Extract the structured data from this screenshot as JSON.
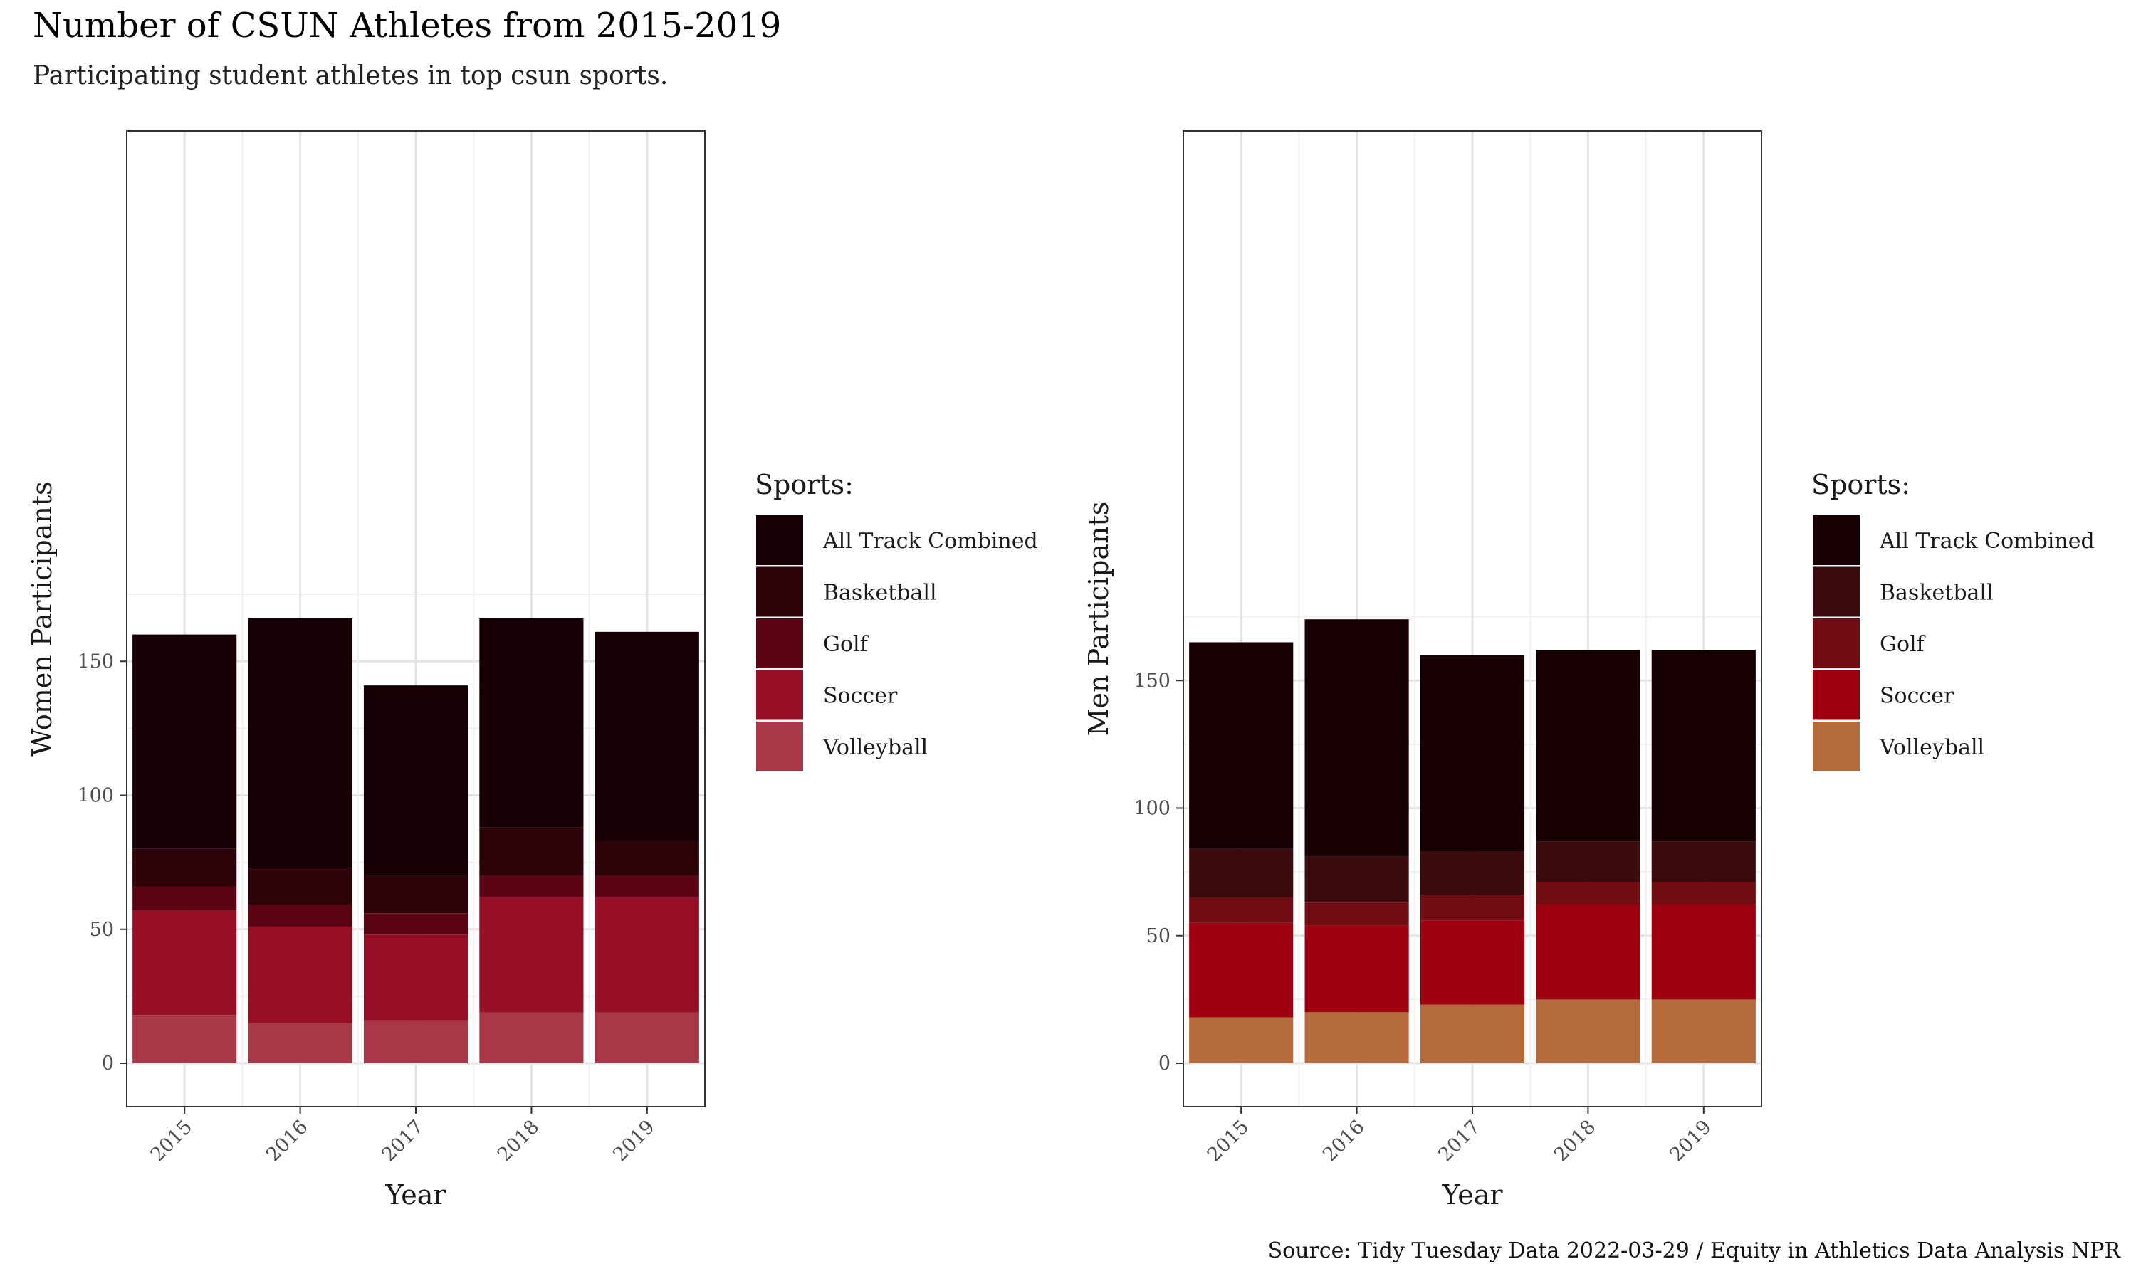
{
  "title": "Number of CSUN Athletes from 2015-2019",
  "subtitle": "Participating student athletes in top csun sports.",
  "caption": "Source: Tidy Tuesday Data 2022-03-29 / Equity in Athletics Data Analysis NPR",
  "chart_data": [
    {
      "type": "bar",
      "stacked": true,
      "categories": [
        "2015",
        "2016",
        "2017",
        "2018",
        "2019"
      ],
      "xlabel": "Year",
      "ylabel": "Women Participants",
      "ylim": [
        0,
        175
      ],
      "yticks": [
        0,
        50,
        100,
        150
      ],
      "grid": true,
      "legend": {
        "title": "Sports:",
        "placement": "right"
      },
      "series": [
        {
          "name": "Volleyball",
          "color": "#a83848",
          "values": [
            18,
            15,
            16,
            19,
            19
          ]
        },
        {
          "name": "Soccer",
          "color": "#960f26",
          "values": [
            39,
            36,
            32,
            43,
            43
          ]
        },
        {
          "name": "Golf",
          "color": "#5a0414",
          "values": [
            9,
            8,
            8,
            8,
            8
          ]
        },
        {
          "name": "Basketball",
          "color": "#2e0209",
          "values": [
            14,
            14,
            14,
            18,
            13
          ]
        },
        {
          "name": "All Track Combined",
          "color": "#160006",
          "values": [
            80,
            93,
            71,
            78,
            78
          ]
        }
      ]
    },
    {
      "type": "bar",
      "stacked": true,
      "categories": [
        "2015",
        "2016",
        "2017",
        "2018",
        "2019"
      ],
      "xlabel": "Year",
      "ylabel": "Men Participants",
      "ylim": [
        0,
        175
      ],
      "yticks": [
        0,
        50,
        100,
        150
      ],
      "grid": true,
      "legend": {
        "title": "Sports:",
        "placement": "right"
      },
      "series": [
        {
          "name": "Volleyball",
          "color": "#b56a3c",
          "values": [
            18,
            20,
            23,
            25,
            25
          ]
        },
        {
          "name": "Soccer",
          "color": "#9e0010",
          "values": [
            37,
            34,
            33,
            37,
            37
          ]
        },
        {
          "name": "Golf",
          "color": "#700c12",
          "values": [
            10,
            9,
            10,
            9,
            9
          ]
        },
        {
          "name": "Basketball",
          "color": "#3a0a0c",
          "values": [
            19,
            18,
            17,
            16,
            16
          ]
        },
        {
          "name": "All Track Combined",
          "color": "#160003",
          "values": [
            81,
            93,
            77,
            75,
            75
          ]
        }
      ]
    }
  ]
}
